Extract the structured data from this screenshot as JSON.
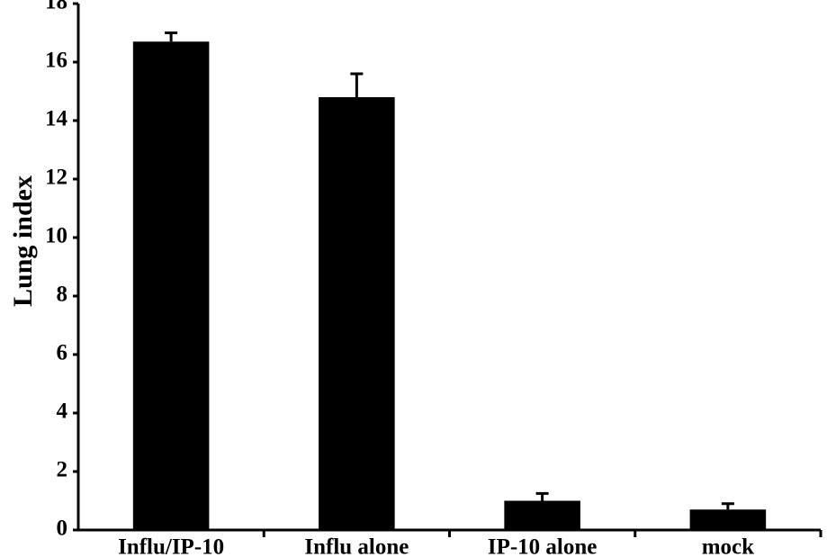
{
  "chart_data": {
    "type": "bar",
    "y_label": "Lung index",
    "categories": [
      "Influ/IP-10",
      "Influ alone",
      "IP-10 alone",
      "mock"
    ],
    "values": [
      16.7,
      14.8,
      1.0,
      0.7
    ],
    "errors": [
      0.3,
      0.8,
      0.25,
      0.2
    ],
    "color": "#000000",
    "ylim": [
      0,
      18
    ],
    "yticks": [
      0,
      2,
      4,
      6,
      8,
      10,
      12,
      14,
      16,
      18
    ]
  }
}
